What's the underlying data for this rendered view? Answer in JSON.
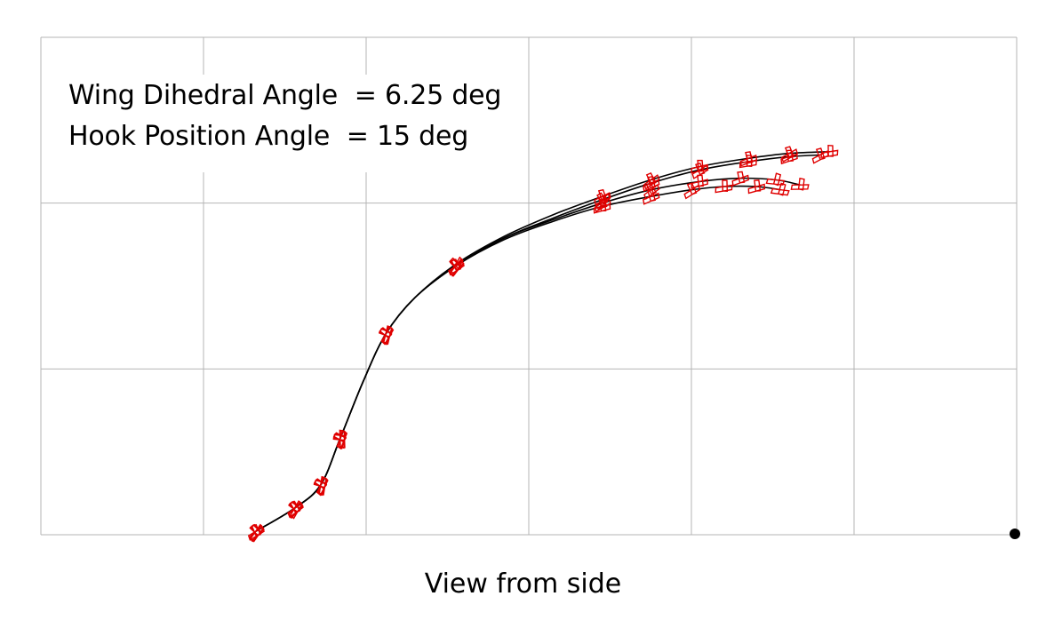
{
  "chart_data": {
    "type": "line",
    "xlabel": "View from side",
    "ylabel": "",
    "title": "",
    "annotations": [
      "Wing Dihedral Angle  = 6.25 deg",
      "Hook Position Angle  = 15 deg"
    ],
    "xlim": [
      0,
      6
    ],
    "ylim": [
      0,
      3
    ],
    "grid": true,
    "colors": {
      "trajectory": "#000000",
      "aircraft_markers": "#e00000",
      "grid": "#b4b4b4",
      "origin_marker": "#000000"
    },
    "origin_marker": [
      6,
      0
    ],
    "series": [
      {
        "x": [
          1.32,
          1.56,
          1.72,
          1.84,
          1.98,
          2.12,
          2.3,
          2.55,
          2.85,
          3.15,
          3.45,
          3.75,
          4.05,
          4.35,
          4.6,
          4.85
        ],
        "y": [
          0.02,
          0.16,
          0.3,
          0.58,
          0.92,
          1.21,
          1.43,
          1.63,
          1.8,
          1.93,
          2.04,
          2.14,
          2.22,
          2.27,
          2.3,
          2.31
        ]
      },
      {
        "x": [
          1.32,
          1.56,
          1.72,
          1.84,
          1.98,
          2.12,
          2.3,
          2.55,
          2.85,
          3.15,
          3.45,
          3.75,
          4.05,
          4.35,
          4.6,
          4.79
        ],
        "y": [
          0.02,
          0.16,
          0.3,
          0.58,
          0.92,
          1.21,
          1.43,
          1.62,
          1.79,
          1.91,
          2.02,
          2.12,
          2.2,
          2.25,
          2.28,
          2.29
        ]
      },
      {
        "x": [
          1.32,
          1.56,
          1.72,
          1.84,
          1.98,
          2.12,
          2.3,
          2.55,
          2.85,
          3.15,
          3.45,
          3.75,
          4.05,
          4.3,
          4.52,
          4.67
        ],
        "y": [
          0.02,
          0.16,
          0.3,
          0.58,
          0.92,
          1.21,
          1.43,
          1.62,
          1.79,
          1.9,
          2.0,
          2.08,
          2.13,
          2.15,
          2.14,
          2.11
        ]
      },
      {
        "x": [
          1.32,
          1.56,
          1.72,
          1.84,
          1.98,
          2.12,
          2.3,
          2.55,
          2.85,
          3.15,
          3.45,
          3.75,
          4.0,
          4.2,
          4.4,
          4.55
        ],
        "y": [
          0.02,
          0.16,
          0.3,
          0.58,
          0.92,
          1.21,
          1.43,
          1.62,
          1.78,
          1.89,
          1.98,
          2.04,
          2.08,
          2.1,
          2.1,
          2.08
        ]
      }
    ]
  }
}
